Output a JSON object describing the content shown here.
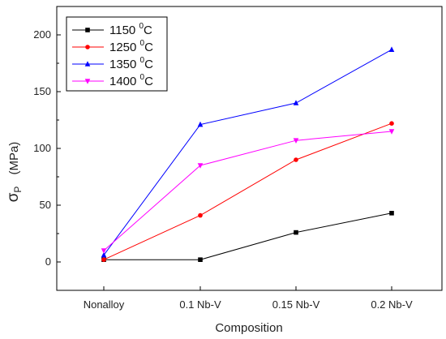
{
  "chart_data": {
    "type": "line",
    "categories": [
      "Nonalloy",
      "0.1 Nb-V",
      "0.15 Nb-V",
      "0.2 Nb-V"
    ],
    "xlabel": "Composition",
    "ylabel": {
      "symbol": "σ",
      "subscript": "P",
      "unit": "(MPa)"
    },
    "ylim": [
      -25,
      225
    ],
    "yticks": [
      0,
      50,
      100,
      150,
      200
    ],
    "grid": false,
    "legend_position": "top-left",
    "series": [
      {
        "name": {
          "value": "1150",
          "sup": "0",
          "unit": "C"
        },
        "color": "#000000",
        "marker": "square",
        "values": [
          2,
          2,
          26,
          43
        ]
      },
      {
        "name": {
          "value": "1250",
          "sup": "0",
          "unit": "C"
        },
        "color": "#ff0000",
        "marker": "circle",
        "values": [
          2,
          41,
          90,
          122
        ]
      },
      {
        "name": {
          "value": "1350",
          "sup": "0",
          "unit": "C"
        },
        "color": "#0000ff",
        "marker": "triangle-up",
        "values": [
          6,
          121,
          140,
          187
        ]
      },
      {
        "name": {
          "value": "1400",
          "sup": "0",
          "unit": "C"
        },
        "color": "#ff00ff",
        "marker": "triangle-down",
        "values": [
          10,
          85,
          107,
          115
        ]
      }
    ]
  }
}
